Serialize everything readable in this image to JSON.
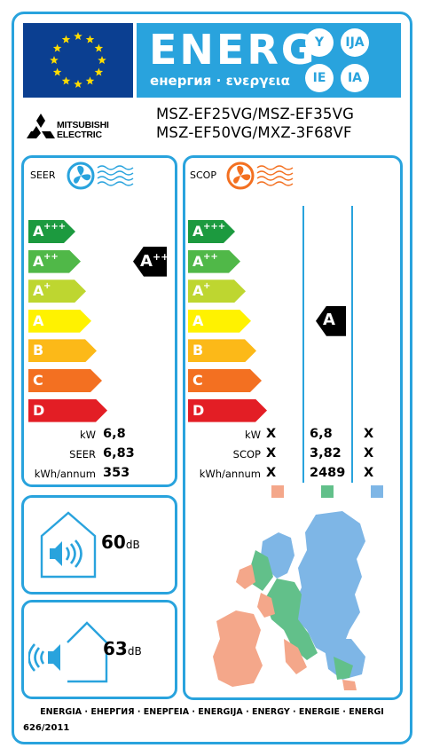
{
  "header": {
    "energ_word": "ENERG",
    "energ_subtitle": "енергия · ενεργεια",
    "lang_codes": [
      "Y",
      "IJA",
      "IE",
      "IA"
    ]
  },
  "brand": {
    "name_line1": "MITSUBISHI",
    "name_line2": "ELECTRIC",
    "models_line1": "MSZ-EF25VG/MSZ-EF35VG",
    "models_line2": "MSZ-EF50VG/MXZ-3F68VF"
  },
  "classes": [
    {
      "base": "A",
      "plus": "+++",
      "color": "#1c9a3f"
    },
    {
      "base": "A",
      "plus": "++",
      "color": "#50b848"
    },
    {
      "base": "A",
      "plus": "+",
      "color": "#bed630"
    },
    {
      "base": "A",
      "plus": "",
      "color": "#fff200"
    },
    {
      "base": "B",
      "plus": "",
      "color": "#fcb918"
    },
    {
      "base": "C",
      "plus": "",
      "color": "#f37021"
    },
    {
      "base": "D",
      "plus": "",
      "color": "#e31e25"
    }
  ],
  "cooling": {
    "title": "SEER",
    "rating_base": "A",
    "rating_plus": "++",
    "rating_class_index": 1,
    "rows": [
      {
        "label": "kW",
        "value": "6,8"
      },
      {
        "label": "SEER",
        "value": "6,83"
      },
      {
        "label": "kWh/annum",
        "value": "353"
      }
    ]
  },
  "heating": {
    "title": "SCOP",
    "rating_base": "A",
    "rating_class_index": 3,
    "rows": [
      {
        "label": "kW",
        "cold": "X",
        "average": "6,8",
        "warm": "X"
      },
      {
        "label": "SCOP",
        "cold": "X",
        "average": "3,82",
        "warm": "X"
      },
      {
        "label": "kWh/annum",
        "cold": "X",
        "average": "2489",
        "warm": "X"
      }
    ],
    "zone_colors": [
      "#f4a78a",
      "#62c08a",
      "#7eb6e6"
    ]
  },
  "noise": {
    "indoor_value": "60",
    "outdoor_value": "63",
    "unit": "dB"
  },
  "footer": {
    "languages": "ENERGIA · ЕНЕРГИЯ · ΕΝΕΡΓΕΙΑ · ENERGIJA · ENERGY · ENERGIE · ENERGI",
    "regulation": "626/2011"
  },
  "colors": {
    "accent": "#29a3dd",
    "eu_blue": "#0b3f91",
    "eu_star": "#ffdd00"
  }
}
